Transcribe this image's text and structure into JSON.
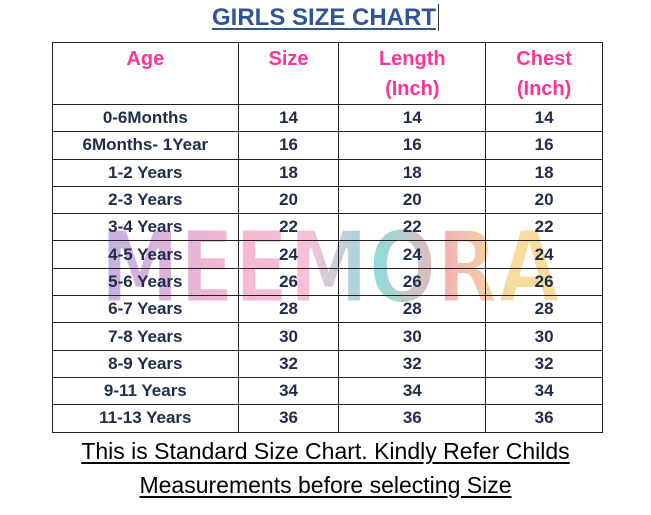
{
  "title": "GIRLS SIZE CHART",
  "watermark": "MEEMORA",
  "table": {
    "header": [
      [
        "Age"
      ],
      [
        "Size"
      ],
      [
        "Length",
        "(Inch)"
      ],
      [
        "Chest",
        "(Inch)"
      ]
    ],
    "rows": [
      [
        "0-6Months",
        14,
        14,
        14
      ],
      [
        "6Months- 1Year",
        16,
        16,
        16
      ],
      [
        "1-2 Years",
        18,
        18,
        18
      ],
      [
        "2-3 Years",
        20,
        20,
        20
      ],
      [
        "3-4 Years",
        22,
        22,
        22
      ],
      [
        "4-5 Years",
        24,
        24,
        24
      ],
      [
        "5-6 Years",
        26,
        26,
        26
      ],
      [
        "6-7 Years",
        28,
        28,
        28
      ],
      [
        "7-8 Years",
        30,
        30,
        30
      ],
      [
        "8-9 Years",
        32,
        32,
        32
      ],
      [
        "9-11 Years",
        34,
        34,
        34
      ],
      [
        "11-13 Years",
        36,
        36,
        36
      ]
    ]
  },
  "footer": [
    "This is Standard Size Chart. Kindly Refer Childs",
    "Measurements before selecting Size"
  ]
}
